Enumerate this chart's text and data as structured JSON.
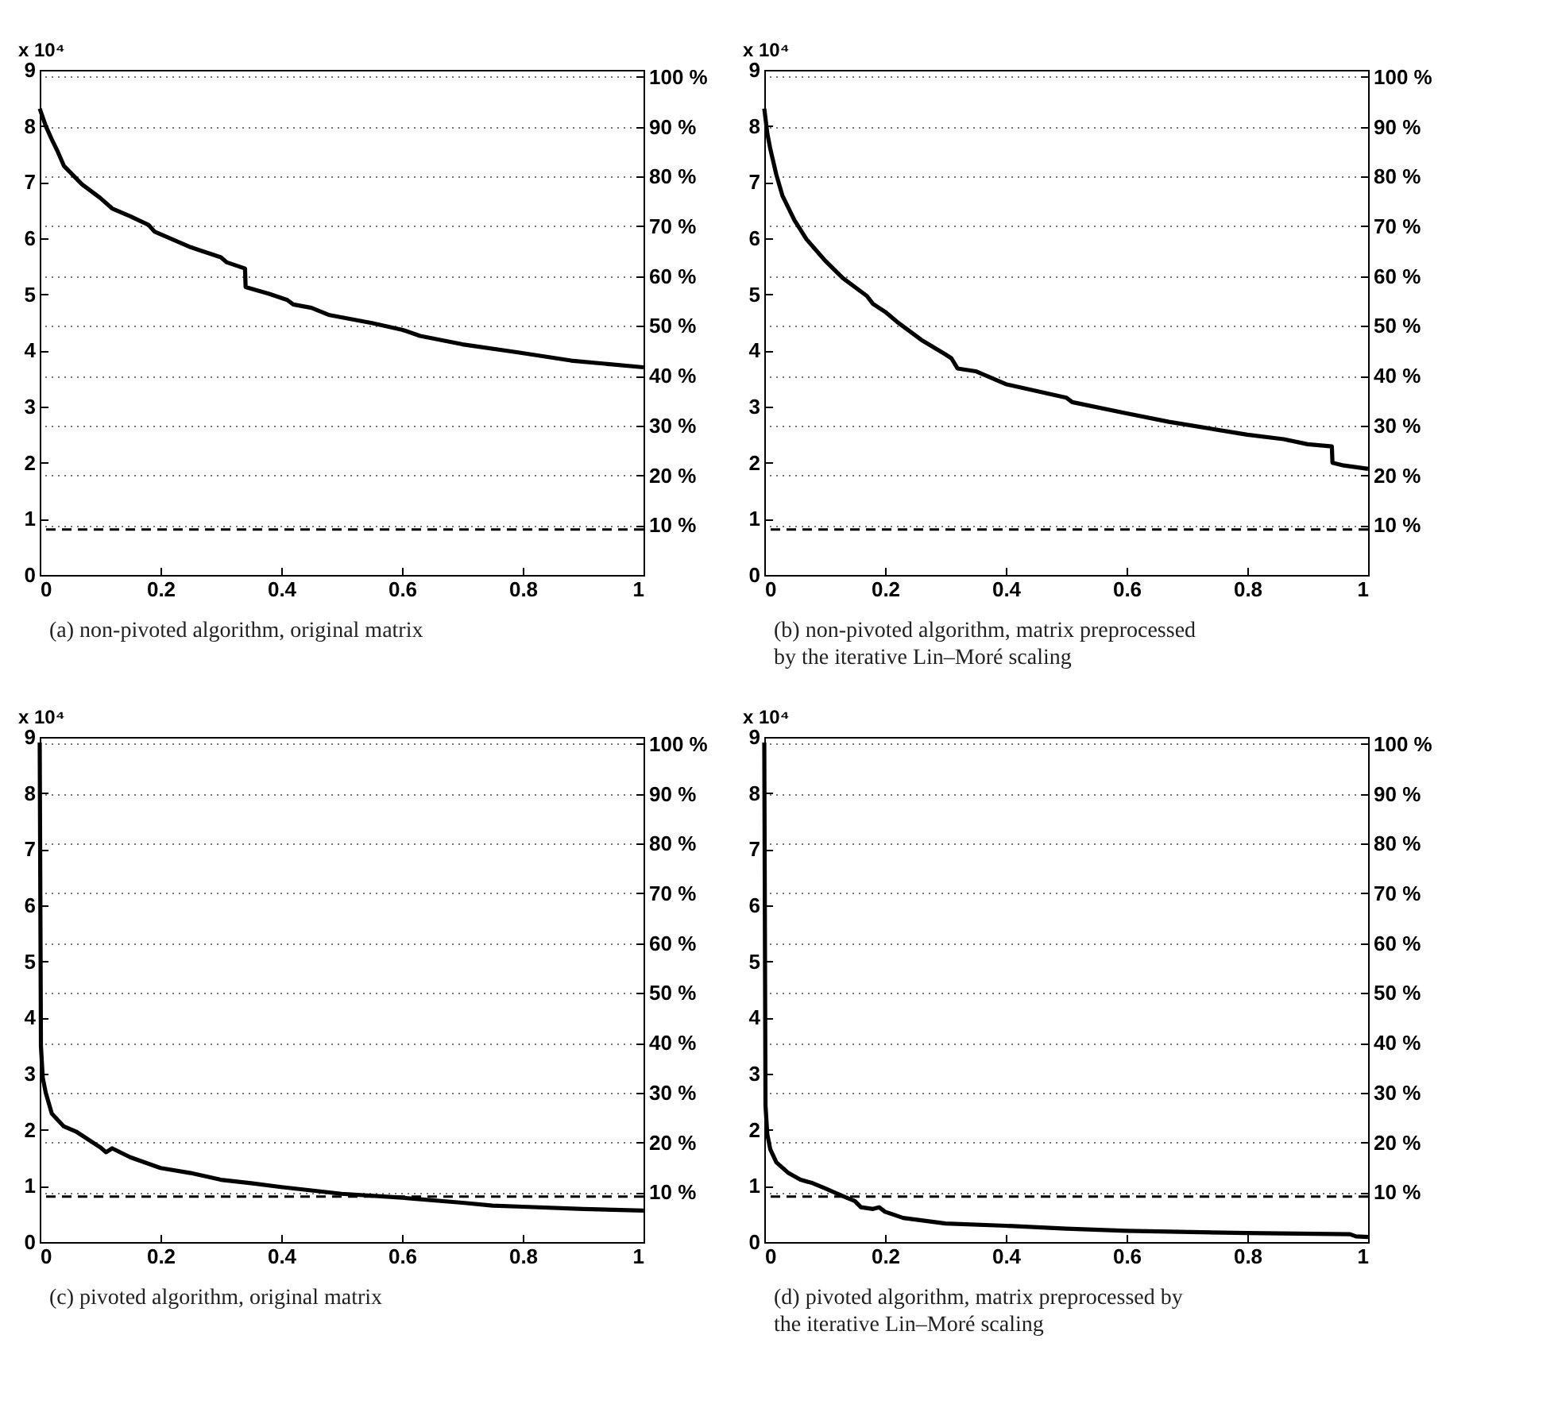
{
  "chart_data": [
    {
      "type": "line",
      "title": "(a) non-pivoted algorithm, original matrix",
      "ylabel": "x 10⁴",
      "xlim": [
        0,
        1
      ],
      "xticks": [
        0,
        0.2,
        0.4,
        0.6,
        0.8,
        1
      ],
      "ylim": [
        0,
        9
      ],
      "yticks": [
        0,
        1,
        2,
        3,
        4,
        5,
        6,
        7,
        8,
        9
      ],
      "y2lim": [
        0,
        101.4
      ],
      "y2ticks": [
        {
          "value": 10,
          "label": "10 %"
        },
        {
          "value": 20,
          "label": "20 %"
        },
        {
          "value": 30,
          "label": "30 %"
        },
        {
          "value": 40,
          "label": "40 %"
        },
        {
          "value": 50,
          "label": "50 %"
        },
        {
          "value": 60,
          "label": "60 %"
        },
        {
          "value": 70,
          "label": "70 %"
        },
        {
          "value": 80,
          "label": "80 %"
        },
        {
          "value": 90,
          "label": "90 %"
        },
        {
          "value": 100,
          "label": "100 %"
        }
      ],
      "grid": "y2",
      "ref_lines": [
        {
          "axis": "y",
          "value": 0.81,
          "label": null,
          "color": "#000000",
          "line_style": "dashed"
        }
      ],
      "series": [
        {
          "color": "#000000",
          "x": [
            0,
            0.01,
            0.02,
            0.03,
            0.04,
            0.05,
            0.07,
            0.1,
            0.12,
            0.15,
            0.18,
            0.19,
            0.25,
            0.3,
            0.31,
            0.34,
            0.341,
            0.38,
            0.41,
            0.42,
            0.45,
            0.48,
            0.55,
            0.6,
            0.63,
            0.7,
            0.79,
            0.88,
            1
          ],
          "values": [
            8.31,
            8.0,
            7.76,
            7.54,
            7.29,
            7.18,
            6.96,
            6.72,
            6.53,
            6.39,
            6.24,
            6.12,
            5.84,
            5.66,
            5.57,
            5.46,
            5.13,
            5.01,
            4.9,
            4.82,
            4.76,
            4.63,
            4.49,
            4.37,
            4.26,
            4.11,
            3.97,
            3.82,
            3.7
          ]
        }
      ]
    },
    {
      "type": "line",
      "title": "(b) non-pivoted algorithm, matrix preprocessed by the iterative Lin–Moré scaling",
      "ylabel": "x 10⁴",
      "xlim": [
        0,
        1
      ],
      "xticks": [
        0,
        0.2,
        0.4,
        0.6,
        0.8,
        1
      ],
      "ylim": [
        0,
        9
      ],
      "yticks": [
        0,
        1,
        2,
        3,
        4,
        5,
        6,
        7,
        8,
        9
      ],
      "y2lim": [
        0,
        101.4
      ],
      "y2ticks": [
        {
          "value": 10,
          "label": "10 %"
        },
        {
          "value": 20,
          "label": "20 %"
        },
        {
          "value": 30,
          "label": "30 %"
        },
        {
          "value": 40,
          "label": "40 %"
        },
        {
          "value": 50,
          "label": "50 %"
        },
        {
          "value": 60,
          "label": "60 %"
        },
        {
          "value": 70,
          "label": "70 %"
        },
        {
          "value": 80,
          "label": "80 %"
        },
        {
          "value": 90,
          "label": "90 %"
        },
        {
          "value": 100,
          "label": "100 %"
        }
      ],
      "grid": "y2",
      "ref_lines": [
        {
          "axis": "y",
          "value": 0.81,
          "label": null,
          "color": "#000000",
          "line_style": "dashed"
        }
      ],
      "series": [
        {
          "color": "#000000",
          "x": [
            0,
            0.005,
            0.01,
            0.02,
            0.03,
            0.05,
            0.07,
            0.1,
            0.13,
            0.17,
            0.18,
            0.2,
            0.22,
            0.26,
            0.3,
            0.31,
            0.32,
            0.35,
            0.4,
            0.5,
            0.51,
            0.6,
            0.67,
            0.8,
            0.86,
            0.9,
            0.94,
            0.941,
            0.96,
            1
          ],
          "values": [
            8.31,
            7.87,
            7.59,
            7.13,
            6.76,
            6.32,
            5.98,
            5.61,
            5.29,
            4.97,
            4.83,
            4.69,
            4.51,
            4.19,
            3.93,
            3.86,
            3.68,
            3.63,
            3.4,
            3.16,
            3.08,
            2.88,
            2.73,
            2.5,
            2.42,
            2.33,
            2.29,
            2.0,
            1.95,
            1.89
          ]
        }
      ]
    },
    {
      "type": "line",
      "title": "(c) pivoted algorithm, original matrix",
      "ylabel": "x 10⁴",
      "xlim": [
        0,
        1
      ],
      "xticks": [
        0,
        0.2,
        0.4,
        0.6,
        0.8,
        1
      ],
      "ylim": [
        0,
        9
      ],
      "yticks": [
        0,
        1,
        2,
        3,
        4,
        5,
        6,
        7,
        8,
        9
      ],
      "y2lim": [
        0,
        101.4
      ],
      "y2ticks": [
        {
          "value": 10,
          "label": "10 %"
        },
        {
          "value": 20,
          "label": "20 %"
        },
        {
          "value": 30,
          "label": "30 %"
        },
        {
          "value": 40,
          "label": "40 %"
        },
        {
          "value": 50,
          "label": "50 %"
        },
        {
          "value": 60,
          "label": "60 %"
        },
        {
          "value": 70,
          "label": "70 %"
        },
        {
          "value": 80,
          "label": "80 %"
        },
        {
          "value": 90,
          "label": "90 %"
        },
        {
          "value": 100,
          "label": "100 %"
        }
      ],
      "grid": "y2",
      "ref_lines": [
        {
          "axis": "y",
          "value": 0.81,
          "label": null,
          "color": "#000000",
          "line_style": "dashed"
        }
      ],
      "series": [
        {
          "color": "#000000",
          "x": [
            0,
            0.002,
            0.005,
            0.01,
            0.02,
            0.04,
            0.06,
            0.1,
            0.11,
            0.12,
            0.15,
            0.2,
            0.25,
            0.3,
            0.35,
            0.4,
            0.5,
            0.6,
            0.7,
            0.75,
            0.8,
            0.9,
            1
          ],
          "values": [
            8.9,
            3.49,
            2.93,
            2.66,
            2.29,
            2.06,
            1.97,
            1.69,
            1.6,
            1.67,
            1.51,
            1.32,
            1.23,
            1.11,
            1.05,
            0.98,
            0.86,
            0.79,
            0.7,
            0.65,
            0.63,
            0.59,
            0.56
          ]
        }
      ]
    },
    {
      "type": "line",
      "title": "(d) pivoted algorithm, matrix preprocessed by the iterative Lin–Moré scaling",
      "ylabel": "x 10⁴",
      "xlim": [
        0,
        1
      ],
      "xticks": [
        0,
        0.2,
        0.4,
        0.6,
        0.8,
        1
      ],
      "ylim": [
        0,
        9
      ],
      "yticks": [
        0,
        1,
        2,
        3,
        4,
        5,
        6,
        7,
        8,
        9
      ],
      "y2lim": [
        0,
        101.4
      ],
      "y2ticks": [
        {
          "value": 10,
          "label": "10 %"
        },
        {
          "value": 20,
          "label": "20 %"
        },
        {
          "value": 30,
          "label": "30 %"
        },
        {
          "value": 40,
          "label": "40 %"
        },
        {
          "value": 50,
          "label": "50 %"
        },
        {
          "value": 60,
          "label": "60 %"
        },
        {
          "value": 70,
          "label": "70 %"
        },
        {
          "value": 80,
          "label": "80 %"
        },
        {
          "value": 90,
          "label": "90 %"
        },
        {
          "value": 100,
          "label": "100 %"
        }
      ],
      "grid": "y2",
      "ref_lines": [
        {
          "axis": "y",
          "value": 0.81,
          "label": null,
          "color": "#000000",
          "line_style": "dashed"
        }
      ],
      "series": [
        {
          "color": "#000000",
          "x": [
            0,
            0.002,
            0.005,
            0.01,
            0.02,
            0.04,
            0.06,
            0.08,
            0.1,
            0.13,
            0.15,
            0.16,
            0.18,
            0.19,
            0.2,
            0.23,
            0.3,
            0.4,
            0.5,
            0.6,
            0.8,
            0.97,
            0.98,
            1
          ],
          "values": [
            8.9,
            2.43,
            1.92,
            1.65,
            1.42,
            1.23,
            1.11,
            1.05,
            0.96,
            0.82,
            0.73,
            0.62,
            0.59,
            0.62,
            0.54,
            0.43,
            0.33,
            0.29,
            0.24,
            0.2,
            0.16,
            0.14,
            0.1,
            0.09
          ]
        }
      ]
    }
  ]
}
